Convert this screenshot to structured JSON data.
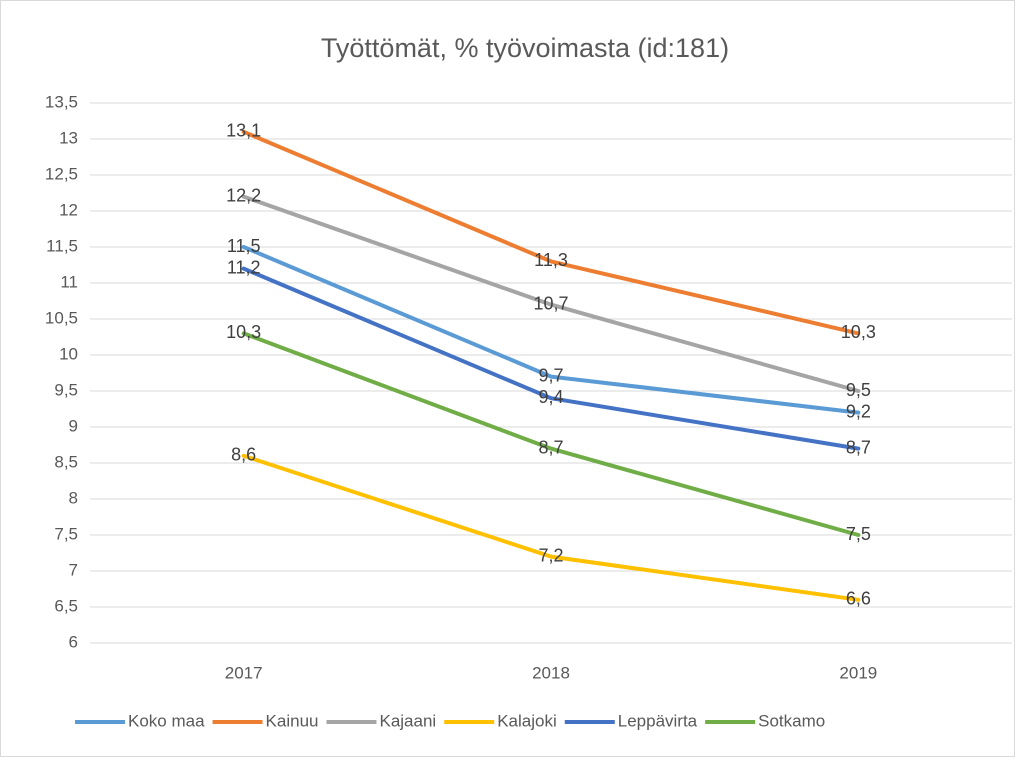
{
  "chart_data": {
    "type": "line",
    "title": "Työttömät, % työvoimasta (id:181)",
    "categories": [
      "2017",
      "2018",
      "2019"
    ],
    "series": [
      {
        "name": "Koko maa",
        "color": "#5b9bd5",
        "values": [
          11.5,
          9.7,
          9.2
        ],
        "value_labels": [
          "11,5",
          "9,7",
          "9,2"
        ]
      },
      {
        "name": "Kainuu",
        "color": "#ed7d31",
        "values": [
          13.1,
          11.3,
          10.3
        ],
        "value_labels": [
          "13,1",
          "11,3",
          "10,3"
        ]
      },
      {
        "name": "Kajaani",
        "color": "#a5a5a5",
        "values": [
          12.2,
          10.7,
          9.5
        ],
        "value_labels": [
          "12,2",
          "10,7",
          "9,5"
        ]
      },
      {
        "name": "Kalajoki",
        "color": "#ffc000",
        "values": [
          8.6,
          7.2,
          6.6
        ],
        "value_labels": [
          "8,6",
          "7,2",
          "6,6"
        ]
      },
      {
        "name": "Leppävirta",
        "color": "#4472c4",
        "values": [
          11.2,
          9.4,
          8.7
        ],
        "value_labels": [
          "11,2",
          "9,4",
          "8,7"
        ]
      },
      {
        "name": "Sotkamo",
        "color": "#70ad47",
        "values": [
          10.3,
          8.7,
          7.5
        ],
        "value_labels": [
          "10,3",
          "8,7",
          "7,5"
        ]
      }
    ],
    "ylim": [
      6,
      13.5
    ],
    "yticks": [
      6,
      {
        "value": 6.5,
        "label": "6,5"
      },
      7,
      {
        "value": 7.5,
        "label": "7,5"
      },
      8,
      {
        "value": 8.5,
        "label": "8,5"
      },
      9,
      {
        "value": 9.5,
        "label": "9,5"
      },
      10,
      {
        "value": 10.5,
        "label": "10,5"
      },
      11,
      {
        "value": 11.5,
        "label": "11,5"
      },
      12,
      {
        "value": 12.5,
        "label": "12,5"
      },
      13,
      {
        "value": 13.5,
        "label": "13,5"
      }
    ],
    "grid": true,
    "legend": "bottom"
  }
}
